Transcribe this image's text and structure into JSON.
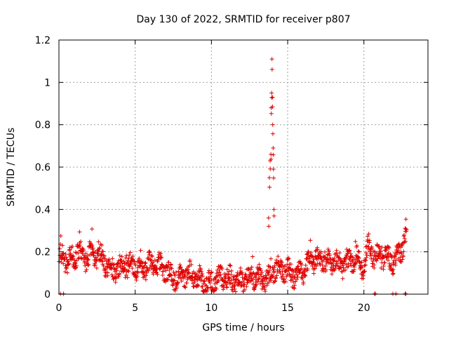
{
  "chart_data": {
    "type": "scatter",
    "title": "Day 130 of 2022, SRMTID for receiver p807",
    "xlabel": "GPS time / hours",
    "ylabel": "SRMTID / TECUs",
    "xlim": [
      0,
      24.2
    ],
    "ylim": [
      0,
      1.2
    ],
    "xticks": [
      "0",
      "5",
      "10",
      "15",
      "20"
    ],
    "xtick_values": [
      0,
      5,
      10,
      15,
      20
    ],
    "yticks": [
      "0",
      "0.2",
      "0.4",
      "0.6",
      "0.8",
      "1",
      "1.2"
    ],
    "ytick_values": [
      0,
      0.2,
      0.4,
      0.6,
      0.8,
      1.0,
      1.2
    ],
    "grid": true,
    "marker": "+",
    "color": "#e00000",
    "series": [
      {
        "name": "SRMTID",
        "profile": {
          "x": [
            0.0,
            0.5,
            1.0,
            1.2,
            1.6,
            2.0,
            2.5,
            3.0,
            3.5,
            4.0,
            4.5,
            5.0,
            5.5,
            6.0,
            6.5,
            7.0,
            7.5,
            8.0,
            8.5,
            9.0,
            9.5,
            10.0,
            10.5,
            11.0,
            11.5,
            12.0,
            12.5,
            13.0,
            13.5,
            13.8,
            14.0,
            14.3,
            14.8,
            15.5,
            16.0,
            16.5,
            17.0,
            17.5,
            18.0,
            18.5,
            19.0,
            19.5,
            20.0,
            20.3,
            20.7,
            21.0,
            21.5,
            22.0,
            22.4,
            22.8
          ],
          "y": [
            0.17,
            0.15,
            0.16,
            0.22,
            0.18,
            0.19,
            0.17,
            0.15,
            0.13,
            0.12,
            0.11,
            0.13,
            0.14,
            0.15,
            0.12,
            0.11,
            0.1,
            0.09,
            0.08,
            0.07,
            0.07,
            0.06,
            0.06,
            0.07,
            0.08,
            0.08,
            0.07,
            0.07,
            0.08,
            0.09,
            0.12,
            0.11,
            0.1,
            0.1,
            0.12,
            0.14,
            0.15,
            0.16,
            0.17,
            0.12,
            0.14,
            0.18,
            0.14,
            0.24,
            0.16,
            0.17,
            0.18,
            0.17,
            0.2,
            0.27
          ]
        },
        "spread": 0.045,
        "spike": {
          "x": [
            13.75,
            13.8,
            13.85,
            13.9,
            13.92,
            13.95,
            13.97,
            14.0,
            14.02,
            14.05,
            14.07,
            14.1
          ],
          "y": [
            0.36,
            0.55,
            0.63,
            0.66,
            0.88,
            0.95,
            1.11,
            0.93,
            0.8,
            0.69,
            0.59,
            0.4
          ]
        },
        "zero_points_x": [
          0.1,
          0.3,
          20.7,
          20.75,
          21.9,
          22.1,
          22.7,
          22.75
        ]
      }
    ]
  }
}
